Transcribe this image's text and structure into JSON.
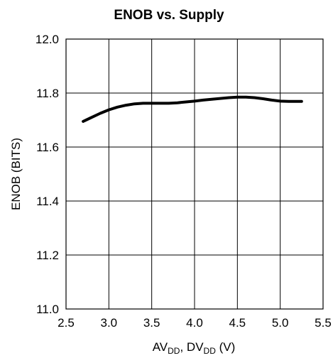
{
  "chart_data": {
    "type": "line",
    "title": "ENOB vs. Supply",
    "ylabel": "ENOB (BITS)",
    "xlabel": {
      "parts": [
        {
          "text": "AV",
          "sub": false
        },
        {
          "text": "DD",
          "sub": true
        },
        {
          "text": ", DV",
          "sub": false
        },
        {
          "text": "DD",
          "sub": true
        },
        {
          "text": " (V)",
          "sub": false
        }
      ]
    },
    "xlim": [
      2.5,
      5.5
    ],
    "ylim": [
      11.0,
      12.0
    ],
    "xticks": [
      "2.5",
      "3.0",
      "3.5",
      "4.0",
      "4.5",
      "5.0",
      "5.5"
    ],
    "yticks": [
      "11.0",
      "11.2",
      "11.4",
      "11.6",
      "11.8",
      "12.0"
    ],
    "grid": true,
    "series": [
      {
        "x": [
          2.7,
          2.8,
          2.9,
          3.0,
          3.1,
          3.2,
          3.3,
          3.4,
          3.5,
          3.6,
          3.7,
          3.8,
          3.9,
          4.0,
          4.1,
          4.2,
          4.3,
          4.4,
          4.5,
          4.6,
          4.7,
          4.8,
          4.9,
          5.0,
          5.1,
          5.25
        ],
        "y": [
          11.695,
          11.71,
          11.725,
          11.738,
          11.748,
          11.755,
          11.76,
          11.762,
          11.762,
          11.762,
          11.762,
          11.764,
          11.767,
          11.77,
          11.774,
          11.777,
          11.78,
          11.783,
          11.785,
          11.785,
          11.783,
          11.779,
          11.774,
          11.77,
          11.769,
          11.769
        ]
      }
    ]
  }
}
